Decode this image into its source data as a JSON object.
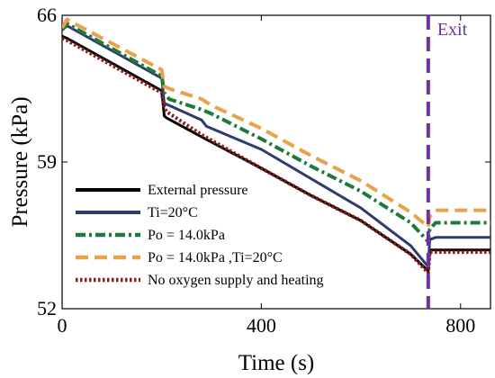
{
  "chart_data": {
    "type": "line",
    "xlabel": "Time (s)",
    "ylabel": "Pressure (kPa)",
    "xlim": [
      0,
      860
    ],
    "ylim": [
      52,
      66
    ],
    "x_ticks": [
      0,
      400,
      800
    ],
    "x_tick_labels": [
      "0",
      "400",
      "800"
    ],
    "y_ticks": [
      52,
      59,
      66
    ],
    "y_tick_labels": [
      "52",
      "59",
      "66"
    ],
    "grid": false,
    "legend_position": "bottom-left",
    "annotations": [
      {
        "text": "Exit",
        "x": 735,
        "color": "#7030A0"
      }
    ],
    "series": [
      {
        "name": "External pressure",
        "color": "#000000",
        "style": "solid",
        "x": [
          0,
          10,
          200,
          205,
          210,
          280,
          400,
          500,
          600,
          700,
          735,
          738,
          750,
          860
        ],
        "y": [
          65.0,
          64.9,
          62.4,
          61.2,
          61.1,
          60.2,
          58.7,
          57.4,
          56.2,
          54.6,
          53.8,
          54.8,
          54.8,
          54.8
        ]
      },
      {
        "name": "Ti=20°C",
        "color": "#2E3B6E",
        "style": "solid",
        "x": [
          0,
          10,
          200,
          205,
          215,
          280,
          290,
          400,
          500,
          600,
          700,
          735,
          738,
          750,
          860
        ],
        "y": [
          65.3,
          65.5,
          63.0,
          61.8,
          61.7,
          61.0,
          60.7,
          59.6,
          58.2,
          56.8,
          55.0,
          54.0,
          55.3,
          55.4,
          55.4
        ]
      },
      {
        "name": "Po = 14.0kPa",
        "color": "#1F7A3A",
        "style": "dashdot",
        "x": [
          0,
          10,
          200,
          205,
          215,
          280,
          300,
          400,
          500,
          600,
          700,
          735,
          738,
          750,
          860
        ],
        "y": [
          65.3,
          65.6,
          63.1,
          62.3,
          62.0,
          61.5,
          61.3,
          60.1,
          58.8,
          57.6,
          56.1,
          55.2,
          55.8,
          56.1,
          56.1
        ]
      },
      {
        "name": "Po = 14.0kPa ,Ti=20°C",
        "color": "#E8A24C",
        "style": "dashed",
        "x": [
          0,
          10,
          200,
          205,
          215,
          280,
          300,
          400,
          500,
          600,
          700,
          735,
          738,
          750,
          860
        ],
        "y": [
          65.4,
          65.8,
          63.4,
          62.6,
          62.5,
          62.0,
          61.7,
          60.6,
          59.3,
          58.1,
          56.6,
          55.9,
          56.4,
          56.7,
          56.7
        ]
      },
      {
        "name": "No oxygen supply and heating",
        "color": "#8B1A1A",
        "style": "dotted",
        "x": [
          0,
          10,
          200,
          205,
          210,
          280,
          400,
          500,
          600,
          700,
          735,
          738,
          750,
          860
        ],
        "y": [
          64.9,
          64.8,
          62.3,
          61.6,
          61.4,
          60.3,
          58.7,
          57.4,
          56.2,
          54.6,
          53.7,
          54.7,
          54.7,
          54.7
        ]
      }
    ]
  }
}
